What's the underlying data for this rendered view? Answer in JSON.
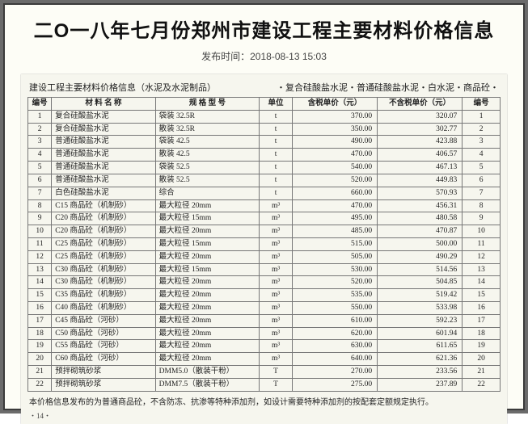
{
  "page": {
    "title": "二O一八年七月份郑州市建设工程主要材料价格信息",
    "publish_label": "发布时间：",
    "publish_time": "2018-08-13 15:03"
  },
  "sheet": {
    "caption_left": "建设工程主要材料价格信息（水泥及水泥制品）",
    "caption_right": "・复合硅酸盐水泥・普通硅酸盐水泥・白水泥・商品砼・",
    "footnote": "本价格信息发布的为普通商品砼，不含防冻、抗渗等特种添加剂，如设计需要特种添加剂的按配套定额规定执行。",
    "page_marker": "・14・"
  },
  "table": {
    "headers": [
      "编号",
      "材 料 名 称",
      "规 格 型 号",
      "单位",
      "含税单价（元）",
      "不含税单价（元）",
      "编号"
    ],
    "colwidths": [
      "5%",
      "22%",
      "22%",
      "7%",
      "18%",
      "18%",
      "8%"
    ],
    "rows": [
      [
        "1",
        "复合硅酸盐水泥",
        "袋装 32.5R",
        "t",
        "370.00",
        "320.07",
        "1"
      ],
      [
        "2",
        "复合硅酸盐水泥",
        "散装 32.5R",
        "t",
        "350.00",
        "302.77",
        "2"
      ],
      [
        "3",
        "普通硅酸盐水泥",
        "袋装 42.5",
        "t",
        "490.00",
        "423.88",
        "3"
      ],
      [
        "4",
        "普通硅酸盐水泥",
        "散装 42.5",
        "t",
        "470.00",
        "406.57",
        "4"
      ],
      [
        "5",
        "普通硅酸盐水泥",
        "袋装 52.5",
        "t",
        "540.00",
        "467.13",
        "5"
      ],
      [
        "6",
        "普通硅酸盐水泥",
        "散装 52.5",
        "t",
        "520.00",
        "449.83",
        "6"
      ],
      [
        "7",
        "白色硅酸盐水泥",
        "综合",
        "t",
        "660.00",
        "570.93",
        "7"
      ],
      [
        "8",
        "C15 商品砼（机制砂）",
        "最大粒径 20mm",
        "m³",
        "470.00",
        "456.31",
        "8"
      ],
      [
        "9",
        "C20 商品砼（机制砂）",
        "最大粒径 15mm",
        "m³",
        "495.00",
        "480.58",
        "9"
      ],
      [
        "10",
        "C20 商品砼（机制砂）",
        "最大粒径 20mm",
        "m³",
        "485.00",
        "470.87",
        "10"
      ],
      [
        "11",
        "C25 商品砼（机制砂）",
        "最大粒径 15mm",
        "m³",
        "515.00",
        "500.00",
        "11"
      ],
      [
        "12",
        "C25 商品砼（机制砂）",
        "最大粒径 20mm",
        "m³",
        "505.00",
        "490.29",
        "12"
      ],
      [
        "13",
        "C30 商品砼（机制砂）",
        "最大粒径 15mm",
        "m³",
        "530.00",
        "514.56",
        "13"
      ],
      [
        "14",
        "C30 商品砼（机制砂）",
        "最大粒径 20mm",
        "m³",
        "520.00",
        "504.85",
        "14"
      ],
      [
        "15",
        "C35 商品砼（机制砂）",
        "最大粒径 20mm",
        "m³",
        "535.00",
        "519.42",
        "15"
      ],
      [
        "16",
        "C40 商品砼（机制砂）",
        "最大粒径 20mm",
        "m³",
        "550.00",
        "533.98",
        "16"
      ],
      [
        "17",
        "C45 商品砼（河砂）",
        "最大粒径 20mm",
        "m³",
        "610.00",
        "592.23",
        "17"
      ],
      [
        "18",
        "C50 商品砼（河砂）",
        "最大粒径 20mm",
        "m³",
        "620.00",
        "601.94",
        "18"
      ],
      [
        "19",
        "C55 商品砼（河砂）",
        "最大粒径 20mm",
        "m³",
        "630.00",
        "611.65",
        "19"
      ],
      [
        "20",
        "C60 商品砼（河砂）",
        "最大粒径 20mm",
        "m³",
        "640.00",
        "621.36",
        "20"
      ],
      [
        "21",
        "预拌砌筑砂浆",
        "DMM5.0（散装干粉）",
        "T",
        "270.00",
        "233.56",
        "21"
      ],
      [
        "22",
        "预拌砌筑砂浆",
        "DMM7.5（散装干粉）",
        "T",
        "275.00",
        "237.89",
        "22"
      ]
    ]
  }
}
